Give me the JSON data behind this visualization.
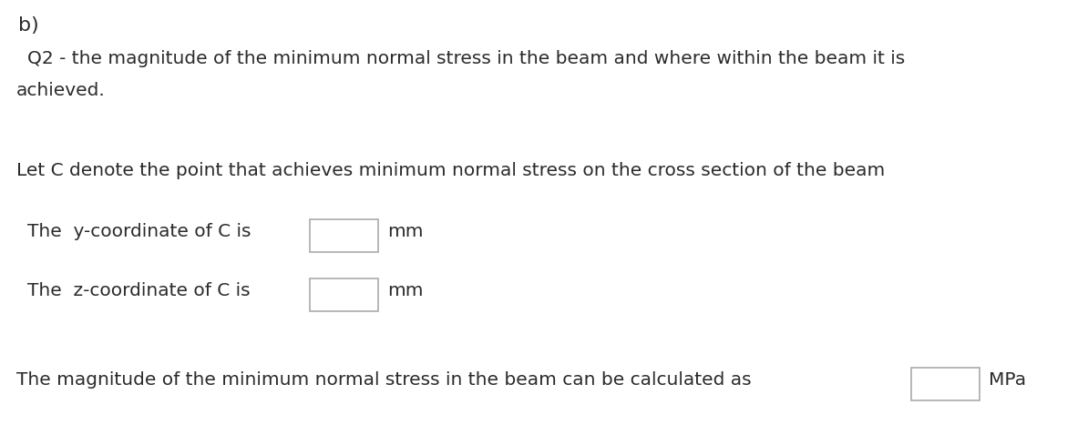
{
  "background_color": "#ffffff",
  "label_b": "b)",
  "line1": "Q2 - the magnitude of the minimum normal stress in the beam and where within the beam it is",
  "line2": "achieved.",
  "line3": "Let C denote the point that achieves minimum normal stress on the cross section of the beam",
  "line4_prefix": "The  y-coordinate of C is",
  "line4_suffix": "mm",
  "line5_prefix": "The  z-coordinate of C is",
  "line5_suffix": "mm",
  "line6_prefix": "The magnitude of the minimum normal stress in the beam can be calculated as",
  "line6_suffix": "MPa",
  "font_size_b": 16,
  "font_size_main": 14.5,
  "text_color": "#2b2b2b",
  "box_face_color": "#ffffff",
  "box_edge_color": "#aaaaaa"
}
